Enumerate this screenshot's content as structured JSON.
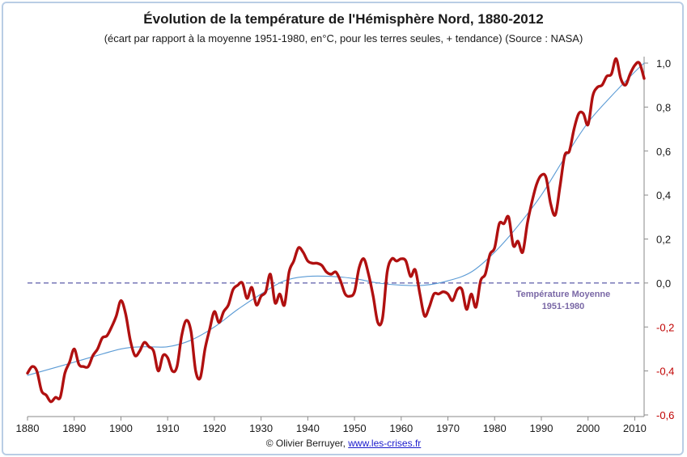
{
  "chart_data": {
    "type": "line",
    "title": "Évolution de la température de l'Hémisphère Nord, 1880-2012",
    "subtitle": "(écart par rapport à la moyenne 1951-1980, en°C, pour les terres seules, + tendance) (Source : NASA)",
    "xlabel": "",
    "ylabel": "",
    "xlim": [
      1880,
      2012
    ],
    "ylim": [
      -0.6,
      1.0
    ],
    "x_ticks": [
      1880,
      1890,
      1900,
      1910,
      1920,
      1930,
      1940,
      1950,
      1960,
      1970,
      1980,
      1990,
      2000,
      2010
    ],
    "y_ticks": [
      {
        "value": 1.0,
        "label": "1,0"
      },
      {
        "value": 0.8,
        "label": "0,8"
      },
      {
        "value": 0.6,
        "label": "0,6"
      },
      {
        "value": 0.4,
        "label": "0,4"
      },
      {
        "value": 0.2,
        "label": "0,2"
      },
      {
        "value": 0.0,
        "label": "0,0"
      },
      {
        "value": -0.2,
        "label": "-0,2"
      },
      {
        "value": -0.4,
        "label": "-0,4"
      },
      {
        "value": -0.6,
        "label": "-0,6"
      }
    ],
    "y_axis_position": "right",
    "positive_tick_color": "#1a1a1a",
    "negative_tick_color": "#c00000",
    "grid": false,
    "reference_line": {
      "y": 0.0,
      "label_line1": "Température Moyenne",
      "label_line2": "1951-1980",
      "color": "#5b5ba8"
    },
    "series": [
      {
        "color": "#b01010",
        "x": [
          1880,
          1881,
          1882,
          1883,
          1884,
          1885,
          1886,
          1887,
          1888,
          1889,
          1890,
          1891,
          1892,
          1893,
          1894,
          1895,
          1896,
          1897,
          1898,
          1899,
          1900,
          1901,
          1902,
          1903,
          1904,
          1905,
          1906,
          1907,
          1908,
          1909,
          1910,
          1911,
          1912,
          1913,
          1914,
          1915,
          1916,
          1917,
          1918,
          1919,
          1920,
          1921,
          1922,
          1923,
          1924,
          1925,
          1926,
          1927,
          1928,
          1929,
          1930,
          1931,
          1932,
          1933,
          1934,
          1935,
          1936,
          1937,
          1938,
          1939,
          1940,
          1941,
          1942,
          1943,
          1944,
          1945,
          1946,
          1947,
          1948,
          1949,
          1950,
          1951,
          1952,
          1953,
          1954,
          1955,
          1956,
          1957,
          1958,
          1959,
          1960,
          1961,
          1962,
          1963,
          1964,
          1965,
          1966,
          1967,
          1968,
          1969,
          1970,
          1971,
          1972,
          1973,
          1974,
          1975,
          1976,
          1977,
          1978,
          1979,
          1980,
          1981,
          1982,
          1983,
          1984,
          1985,
          1986,
          1987,
          1988,
          1989,
          1990,
          1991,
          1992,
          1993,
          1994,
          1995,
          1996,
          1997,
          1998,
          1999,
          2000,
          2001,
          2002,
          2003,
          2004,
          2005,
          2006,
          2007,
          2008,
          2009,
          2010,
          2011,
          2012
        ],
        "values": [
          -0.41,
          -0.38,
          -0.4,
          -0.49,
          -0.51,
          -0.54,
          -0.52,
          -0.52,
          -0.41,
          -0.36,
          -0.3,
          -0.37,
          -0.38,
          -0.38,
          -0.33,
          -0.3,
          -0.25,
          -0.24,
          -0.2,
          -0.15,
          -0.08,
          -0.14,
          -0.26,
          -0.33,
          -0.31,
          -0.27,
          -0.29,
          -0.31,
          -0.4,
          -0.33,
          -0.34,
          -0.4,
          -0.38,
          -0.24,
          -0.17,
          -0.22,
          -0.4,
          -0.43,
          -0.3,
          -0.21,
          -0.13,
          -0.18,
          -0.13,
          -0.1,
          -0.03,
          -0.01,
          0.0,
          -0.07,
          -0.02,
          -0.1,
          -0.06,
          -0.04,
          0.04,
          -0.09,
          -0.05,
          -0.1,
          0.05,
          0.1,
          0.16,
          0.14,
          0.1,
          0.09,
          0.09,
          0.08,
          0.05,
          0.04,
          0.05,
          0.01,
          -0.05,
          -0.06,
          -0.04,
          0.07,
          0.11,
          0.04,
          -0.06,
          -0.18,
          -0.16,
          0.05,
          0.11,
          0.1,
          0.11,
          0.1,
          0.03,
          0.06,
          -0.05,
          -0.15,
          -0.11,
          -0.05,
          -0.05,
          -0.04,
          -0.05,
          -0.08,
          -0.03,
          -0.03,
          -0.12,
          -0.05,
          -0.11,
          0.01,
          0.04,
          0.13,
          0.16,
          0.27,
          0.27,
          0.3,
          0.17,
          0.19,
          0.14,
          0.27,
          0.37,
          0.45,
          0.49,
          0.48,
          0.36,
          0.31,
          0.44,
          0.58,
          0.6,
          0.7,
          0.77,
          0.77,
          0.72,
          0.85,
          0.89,
          0.9,
          0.94,
          0.95,
          1.02,
          0.93,
          0.9,
          0.95,
          0.99,
          1.0,
          0.93
        ]
      },
      {
        "color": "#5b9bd5",
        "x": [
          1880,
          1890,
          1900,
          1905,
          1910,
          1915,
          1920,
          1925,
          1930,
          1935,
          1940,
          1945,
          1950,
          1955,
          1960,
          1965,
          1970,
          1975,
          1980,
          1985,
          1990,
          1995,
          2000,
          2005,
          2010,
          2012
        ],
        "values": [
          -0.42,
          -0.36,
          -0.3,
          -0.29,
          -0.29,
          -0.26,
          -0.2,
          -0.12,
          -0.05,
          0.01,
          0.03,
          0.03,
          0.02,
          0.0,
          -0.01,
          -0.01,
          0.01,
          0.05,
          0.14,
          0.26,
          0.4,
          0.57,
          0.73,
          0.85,
          0.96,
          1.0
        ]
      }
    ]
  },
  "credit": {
    "prefix": "© Olivier Berruyer,",
    "link": "www.les-crises.fr"
  }
}
